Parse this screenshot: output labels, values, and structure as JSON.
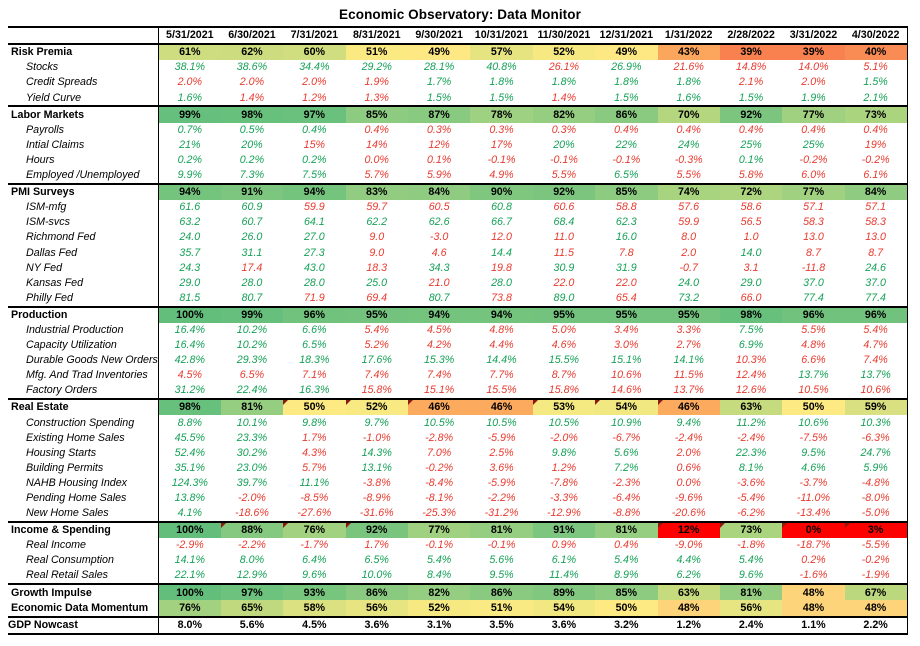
{
  "title": "Economic Observatory: Data Monitor",
  "palette": {
    "text_green": "#16A158",
    "text_red": "#E83B30",
    "scale_max_green": "#63BE7B",
    "scale_mid_yellow": "#FFEB84",
    "scale_min_red": "#FE0000",
    "comment_marker": "#8B1A10",
    "border": "#000000"
  },
  "chart_data": {
    "type": "heatmap",
    "title": "Economic Observatory: Data Monitor",
    "columns": [
      "5/31/2021",
      "6/30/2021",
      "7/31/2021",
      "8/31/2021",
      "9/30/2021",
      "10/31/2021",
      "11/30/2021",
      "12/31/2021",
      "1/31/2022",
      "2/28/2022",
      "3/31/2022",
      "4/30/2022"
    ],
    "rows": [
      {
        "label": "Risk Premia",
        "style": "section",
        "sep": true,
        "values": [
          "61%",
          "62%",
          "60%",
          "51%",
          "49%",
          "57%",
          "52%",
          "49%",
          "43%",
          "39%",
          "39%",
          "40%"
        ],
        "bg": [
          "#CEDD80",
          "#CCDC7F",
          "#D1DE80",
          "#FBE982",
          "#FEE884",
          "#E5E481",
          "#F6E982",
          "#FEE884",
          "#FCA55C",
          "#F98150",
          "#F98150",
          "#F98B54"
        ]
      },
      {
        "label": "Stocks",
        "style": "detail",
        "values": [
          "38.1%",
          "38.6%",
          "34.4%",
          "29.2%",
          "28.1%",
          "40.8%",
          "26.1%",
          "26.9%",
          "21.6%",
          "14.8%",
          "14.0%",
          "5.1%"
        ],
        "colors": "ggggggrgrrrr"
      },
      {
        "label": "Credit Spreads",
        "style": "detail",
        "values": [
          "2.0%",
          "2.0%",
          "2.0%",
          "1.9%",
          "1.7%",
          "1.8%",
          "1.8%",
          "1.8%",
          "1.8%",
          "2.1%",
          "2.0%",
          "1.5%"
        ],
        "colors": "rrrrgggggrrg"
      },
      {
        "label": "Yield Curve",
        "style": "detail",
        "values": [
          "1.6%",
          "1.4%",
          "1.2%",
          "1.3%",
          "1.5%",
          "1.5%",
          "1.4%",
          "1.5%",
          "1.6%",
          "1.5%",
          "1.9%",
          "2.1%"
        ],
        "colors": "grrrggrggggg"
      },
      {
        "label": "Labor Markets",
        "style": "section",
        "sep": true,
        "values": [
          "99%",
          "98%",
          "97%",
          "85%",
          "87%",
          "78%",
          "82%",
          "86%",
          "70%",
          "92%",
          "77%",
          "73%"
        ],
        "bg": [
          "#66BF7C",
          "#68C07D",
          "#6AC17D",
          "#8CCB80",
          "#88CA80",
          "#9ED181",
          "#95CE81",
          "#8ACA80",
          "#B4D67F",
          "#7BC57E",
          "#A0D180",
          "#ABD47F"
        ]
      },
      {
        "label": "Payrolls",
        "style": "detail",
        "values": [
          "0.7%",
          "0.5%",
          "0.4%",
          "0.4%",
          "0.3%",
          "0.3%",
          "0.3%",
          "0.4%",
          "0.4%",
          "0.4%",
          "0.4%",
          "0.4%"
        ],
        "colors": "gggrrrrrrrrr"
      },
      {
        "label": "Intial Claims",
        "style": "detail",
        "values": [
          "21%",
          "20%",
          "15%",
          "14%",
          "12%",
          "17%",
          "20%",
          "22%",
          "24%",
          "25%",
          "25%",
          "19%"
        ],
        "colors": "ggrrrrgggggr"
      },
      {
        "label": "Hours",
        "style": "detail",
        "values": [
          "0.2%",
          "0.2%",
          "0.2%",
          "0.0%",
          "0.1%",
          "-0.1%",
          "-0.1%",
          "-0.1%",
          "-0.3%",
          "0.1%",
          "-0.2%",
          "-0.2%"
        ],
        "colors": "gggrrrrrrgrr"
      },
      {
        "label": "Employed /Unemployed",
        "style": "detail",
        "values": [
          "9.9%",
          "7.3%",
          "7.5%",
          "5.7%",
          "5.9%",
          "4.9%",
          "5.5%",
          "6.5%",
          "5.5%",
          "5.8%",
          "6.0%",
          "6.1%"
        ],
        "colors": "gggrrrrgrrrr"
      },
      {
        "label": "PMI Surveys",
        "style": "section",
        "sep": true,
        "values": [
          "94%",
          "91%",
          "94%",
          "83%",
          "84%",
          "90%",
          "92%",
          "85%",
          "74%",
          "72%",
          "77%",
          "84%"
        ],
        "bg": [
          "#75C47E",
          "#7DC67F",
          "#75C47E",
          "#91CC80",
          "#8FCB80",
          "#7FC77F",
          "#7BC57E",
          "#8CCB80",
          "#A8D480",
          "#ADD57F",
          "#A0D180",
          "#8FCB80"
        ]
      },
      {
        "label": "ISM-mfg",
        "style": "detail",
        "values": [
          "61.6",
          "60.9",
          "59.9",
          "59.7",
          "60.5",
          "60.8",
          "60.6",
          "58.8",
          "57.6",
          "58.6",
          "57.1",
          "57.1"
        ],
        "colors": "ggrrrgrrrrrr"
      },
      {
        "label": "ISM-svcs",
        "style": "detail",
        "values": [
          "63.2",
          "60.7",
          "64.1",
          "62.2",
          "62.6",
          "66.7",
          "68.4",
          "62.3",
          "59.9",
          "56.5",
          "58.3",
          "58.3"
        ],
        "colors": "ggggggggrrrr"
      },
      {
        "label": "Richmond Fed",
        "style": "detail",
        "values": [
          "24.0",
          "26.0",
          "27.0",
          "9.0",
          "-3.0",
          "12.0",
          "11.0",
          "16.0",
          "8.0",
          "1.0",
          "13.0",
          "13.0"
        ],
        "colors": "gggrrrrgrrrr"
      },
      {
        "label": "Dallas Fed",
        "style": "detail",
        "values": [
          "35.7",
          "31.1",
          "27.3",
          "9.0",
          "4.6",
          "14.4",
          "11.5",
          "7.8",
          "2.0",
          "14.0",
          "8.7",
          "8.7"
        ],
        "colors": "gggrrgrrrgrr"
      },
      {
        "label": "NY Fed",
        "style": "detail",
        "values": [
          "24.3",
          "17.4",
          "43.0",
          "18.3",
          "34.3",
          "19.8",
          "30.9",
          "31.9",
          "-0.7",
          "3.1",
          "-11.8",
          "24.6"
        ],
        "colors": "grgrgrggrrrg"
      },
      {
        "label": "Kansas Fed",
        "style": "detail",
        "values": [
          "29.0",
          "28.0",
          "28.0",
          "25.0",
          "21.0",
          "28.0",
          "22.0",
          "22.0",
          "24.0",
          "29.0",
          "37.0",
          "37.0"
        ],
        "colors": "ggggrgrrgggg"
      },
      {
        "label": "Philly Fed",
        "style": "detail",
        "values": [
          "81.5",
          "80.7",
          "71.9",
          "69.4",
          "80.7",
          "73.8",
          "89.0",
          "65.4",
          "73.2",
          "66.0",
          "77.4",
          "77.4"
        ],
        "colors": "ggrrgrgrgrgg"
      },
      {
        "label": "Production",
        "style": "section",
        "sep": true,
        "values": [
          "100%",
          "99%",
          "96%",
          "95%",
          "94%",
          "94%",
          "95%",
          "95%",
          "95%",
          "98%",
          "96%",
          "96%"
        ],
        "bg": [
          "#63BE7B",
          "#66BF7C",
          "#70C27D",
          "#73C37E",
          "#75C47E",
          "#75C47E",
          "#73C37E",
          "#73C37E",
          "#73C37E",
          "#68C07D",
          "#70C27D",
          "#70C27D"
        ]
      },
      {
        "label": "Industrial Production",
        "style": "detail",
        "values": [
          "16.4%",
          "10.2%",
          "6.6%",
          "5.4%",
          "4.5%",
          "4.8%",
          "5.0%",
          "3.4%",
          "3.3%",
          "7.5%",
          "5.5%",
          "5.4%"
        ],
        "colors": "gggrrrrrrgrr"
      },
      {
        "label": "Capacity Utilization",
        "style": "detail",
        "values": [
          "16.4%",
          "10.2%",
          "6.5%",
          "5.2%",
          "4.2%",
          "4.4%",
          "4.6%",
          "3.0%",
          "2.7%",
          "6.9%",
          "4.8%",
          "4.7%"
        ],
        "colors": "gggrrrrrrgrr"
      },
      {
        "label": "Durable Goods New Orders",
        "style": "detail",
        "values": [
          "42.8%",
          "29.3%",
          "18.3%",
          "17.6%",
          "15.3%",
          "14.4%",
          "15.5%",
          "15.1%",
          "14.1%",
          "10.3%",
          "6.6%",
          "7.4%"
        ],
        "colors": "gggggggggrrr"
      },
      {
        "label": "Mfg. And Trad Inventories",
        "style": "detail",
        "values": [
          "4.5%",
          "6.5%",
          "7.1%",
          "7.4%",
          "7.4%",
          "7.7%",
          "8.7%",
          "10.6%",
          "11.5%",
          "12.4%",
          "13.7%",
          "13.7%"
        ],
        "colors": "rrrrrrrrrrgg"
      },
      {
        "label": "Factory Orders",
        "style": "detail",
        "values": [
          "31.2%",
          "22.4%",
          "16.3%",
          "15.8%",
          "15.1%",
          "15.5%",
          "15.8%",
          "14.6%",
          "13.7%",
          "12.6%",
          "10.5%",
          "10.6%"
        ],
        "colors": "gggrrrrrrrrr"
      },
      {
        "label": "Real Estate",
        "style": "section",
        "sep": true,
        "values": [
          "98%",
          "81%",
          "50%",
          "52%",
          "46%",
          "46%",
          "53%",
          "54%",
          "46%",
          "63%",
          "50%",
          "59%"
        ],
        "bg": [
          "#68C07D",
          "#96CE81",
          "#FDEA83",
          "#F8E982",
          "#FBAA5E",
          "#FBAA5E",
          "#F5E982",
          "#F2E881",
          "#FBAA5E",
          "#C6DA7E",
          "#FDEA83",
          "#D8E081"
        ],
        "markers": [
          2,
          3,
          4,
          6,
          7,
          8
        ]
      },
      {
        "label": "Construction Spending",
        "style": "detail",
        "values": [
          "8.8%",
          "10.1%",
          "9.8%",
          "9.7%",
          "10.5%",
          "10.5%",
          "10.5%",
          "10.9%",
          "9.4%",
          "11.2%",
          "10.6%",
          "10.3%"
        ],
        "colors": "gggggggggggg"
      },
      {
        "label": "Existing Home Sales",
        "style": "detail",
        "values": [
          "45.5%",
          "23.3%",
          "1.7%",
          "-1.0%",
          "-2.8%",
          "-5.9%",
          "-2.0%",
          "-6.7%",
          "-2.4%",
          "-2.4%",
          "-7.5%",
          "-6.3%"
        ],
        "colors": "ggrrrrrrrrrr"
      },
      {
        "label": "Housing Starts",
        "style": "detail",
        "values": [
          "52.4%",
          "30.2%",
          "4.3%",
          "14.3%",
          "7.0%",
          "2.5%",
          "9.8%",
          "5.6%",
          "2.0%",
          "22.3%",
          "9.5%",
          "24.7%"
        ],
        "colors": "ggrgrrggrggg"
      },
      {
        "label": "Building Permits",
        "style": "detail",
        "values": [
          "35.1%",
          "23.0%",
          "5.7%",
          "13.1%",
          "-0.2%",
          "3.6%",
          "1.2%",
          "7.2%",
          "0.6%",
          "8.1%",
          "4.6%",
          "5.9%"
        ],
        "colors": "ggrgrrrgrggg"
      },
      {
        "label": "NAHB Housing Index",
        "style": "detail",
        "values": [
          "124.3%",
          "39.7%",
          "11.1%",
          "-3.8%",
          "-8.4%",
          "-5.9%",
          "-7.8%",
          "-2.3%",
          "0.0%",
          "-3.6%",
          "-3.7%",
          "-4.8%"
        ],
        "colors": "gggrrrrrrrrr"
      },
      {
        "label": "Pending Home Sales",
        "style": "detail",
        "values": [
          "13.8%",
          "-2.0%",
          "-8.5%",
          "-8.9%",
          "-8.1%",
          "-2.2%",
          "-3.3%",
          "-6.4%",
          "-9.6%",
          "-5.4%",
          "-11.0%",
          "-8.0%"
        ],
        "colors": "grrrrrrrrrrr"
      },
      {
        "label": "New Home Sales",
        "style": "detail",
        "values": [
          "4.1%",
          "-18.6%",
          "-27.6%",
          "-31.6%",
          "-25.3%",
          "-31.2%",
          "-12.9%",
          "-8.8%",
          "-20.6%",
          "-6.2%",
          "-13.4%",
          "-5.0%"
        ],
        "colors": "grrrrrrrrrrr"
      },
      {
        "label": "Income & Spending",
        "style": "section",
        "sep": true,
        "values": [
          "100%",
          "88%",
          "76%",
          "92%",
          "77%",
          "81%",
          "91%",
          "81%",
          "12%",
          "73%",
          "0%",
          "3%"
        ],
        "bg": [
          "#63BE7B",
          "#85C87F",
          "#A2D280",
          "#7AC57E",
          "#9FD181",
          "#96CE81",
          "#7DC67F",
          "#96CE81",
          "#FE0000",
          "#ABD47F",
          "#FE0000",
          "#FE0000"
        ],
        "markers": [
          1,
          2,
          3,
          8,
          9,
          10,
          11
        ]
      },
      {
        "label": "Real Income",
        "style": "detail",
        "values": [
          "-2.9%",
          "-2.2%",
          "-1.7%",
          "1.7%",
          "-0.1%",
          "-0.1%",
          "0.9%",
          "0.4%",
          "-9.0%",
          "-1.8%",
          "-18.7%",
          "-5.5%"
        ],
        "colors": "rrrrrrrrrrrr"
      },
      {
        "label": "Real Consumption",
        "style": "detail",
        "values": [
          "14.1%",
          "8.0%",
          "6.4%",
          "6.5%",
          "5.4%",
          "5.6%",
          "6.1%",
          "5.4%",
          "4.4%",
          "5.4%",
          "0.2%",
          "-0.2%"
        ],
        "colors": "ggggggggggrr"
      },
      {
        "label": "Real Retail Sales",
        "style": "detail",
        "values": [
          "22.1%",
          "12.9%",
          "9.6%",
          "10.0%",
          "8.4%",
          "9.5%",
          "11.4%",
          "8.9%",
          "6.2%",
          "9.6%",
          "-1.6%",
          "-1.9%"
        ],
        "colors": "ggggggggggrr"
      },
      {
        "label": "Growth Impulse",
        "style": "section",
        "sep": true,
        "values": [
          "100%",
          "97%",
          "93%",
          "86%",
          "82%",
          "86%",
          "89%",
          "85%",
          "63%",
          "81%",
          "48%",
          "67%"
        ],
        "bg": [
          "#63BE7B",
          "#6DC27D",
          "#78C57E",
          "#8ACA80",
          "#95CE81",
          "#8ACA80",
          "#82C77F",
          "#8CCB80",
          "#C6DA7E",
          "#96CE81",
          "#FDD47A",
          "#BCD87E"
        ]
      },
      {
        "label": "Economic Data Momentum",
        "style": "section",
        "values": [
          "76%",
          "65%",
          "58%",
          "56%",
          "52%",
          "51%",
          "54%",
          "50%",
          "48%",
          "56%",
          "48%",
          "48%"
        ],
        "bg": [
          "#A2D280",
          "#C0D97E",
          "#DBE181",
          "#E7E581",
          "#F6E982",
          "#F9EA83",
          "#F2E881",
          "#FDEA83",
          "#FDD47A",
          "#E7E581",
          "#FDD47A",
          "#FDD47A"
        ]
      },
      {
        "label": "GDP Nowcast",
        "style": "total",
        "sep": true,
        "values": [
          "8.0%",
          "5.6%",
          "4.5%",
          "3.6%",
          "3.1%",
          "3.5%",
          "3.6%",
          "3.2%",
          "1.2%",
          "2.4%",
          "1.1%",
          "2.2%"
        ]
      }
    ]
  }
}
